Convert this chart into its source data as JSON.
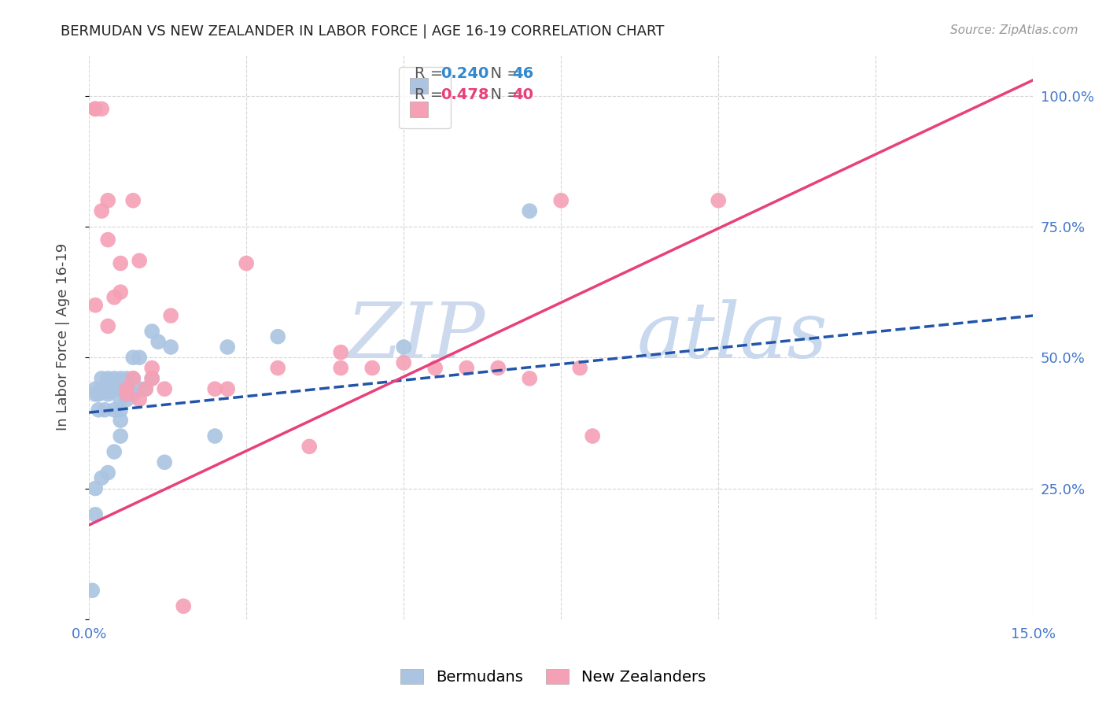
{
  "title": "BERMUDAN VS NEW ZEALANDER IN LABOR FORCE | AGE 16-19 CORRELATION CHART",
  "source_text": "Source: ZipAtlas.com",
  "ylabel": "In Labor Force | Age 16-19",
  "xmin": 0.0,
  "xmax": 0.15,
  "ymin": 0.0,
  "ymax": 1.08,
  "legend_blue_r": "0.240",
  "legend_blue_n": "46",
  "legend_pink_r": "0.478",
  "legend_pink_n": "40",
  "blue_color": "#aac4e2",
  "pink_color": "#f5a0b5",
  "blue_line_color": "#2255aa",
  "pink_line_color": "#e8407a",
  "watermark_text": "ZIPatlas",
  "watermark_color": "#dce8f5",
  "bermudans_x": [
    0.0005,
    0.001,
    0.001,
    0.0015,
    0.0015,
    0.002,
    0.002,
    0.002,
    0.0025,
    0.003,
    0.003,
    0.003,
    0.003,
    0.004,
    0.004,
    0.004,
    0.005,
    0.005,
    0.005,
    0.005,
    0.005,
    0.006,
    0.006,
    0.006,
    0.007,
    0.007,
    0.007,
    0.008,
    0.008,
    0.009,
    0.01,
    0.01,
    0.011,
    0.012,
    0.013,
    0.02,
    0.022,
    0.03,
    0.05,
    0.07,
    0.001,
    0.001,
    0.002,
    0.003,
    0.004,
    0.005
  ],
  "bermudans_y": [
    0.055,
    0.43,
    0.44,
    0.4,
    0.43,
    0.44,
    0.46,
    0.435,
    0.4,
    0.43,
    0.44,
    0.46,
    0.435,
    0.4,
    0.44,
    0.46,
    0.38,
    0.4,
    0.42,
    0.44,
    0.46,
    0.42,
    0.44,
    0.46,
    0.43,
    0.46,
    0.5,
    0.44,
    0.5,
    0.44,
    0.46,
    0.55,
    0.53,
    0.3,
    0.52,
    0.35,
    0.52,
    0.54,
    0.52,
    0.78,
    0.2,
    0.25,
    0.27,
    0.28,
    0.32,
    0.35
  ],
  "newzealanders_x": [
    0.001,
    0.001,
    0.002,
    0.003,
    0.003,
    0.004,
    0.005,
    0.005,
    0.006,
    0.007,
    0.007,
    0.008,
    0.009,
    0.01,
    0.012,
    0.013,
    0.02,
    0.025,
    0.03,
    0.035,
    0.04,
    0.045,
    0.05,
    0.055,
    0.06,
    0.065,
    0.07,
    0.075,
    0.08,
    0.1,
    0.001,
    0.002,
    0.003,
    0.006,
    0.008,
    0.01,
    0.015,
    0.022,
    0.04,
    0.078
  ],
  "newzealanders_y": [
    0.975,
    0.975,
    0.975,
    0.725,
    0.8,
    0.615,
    0.625,
    0.68,
    0.43,
    0.46,
    0.8,
    0.685,
    0.44,
    0.48,
    0.44,
    0.58,
    0.44,
    0.68,
    0.48,
    0.33,
    0.51,
    0.48,
    0.49,
    0.48,
    0.48,
    0.48,
    0.46,
    0.8,
    0.35,
    0.8,
    0.6,
    0.78,
    0.56,
    0.44,
    0.42,
    0.46,
    0.025,
    0.44,
    0.48,
    0.48
  ]
}
